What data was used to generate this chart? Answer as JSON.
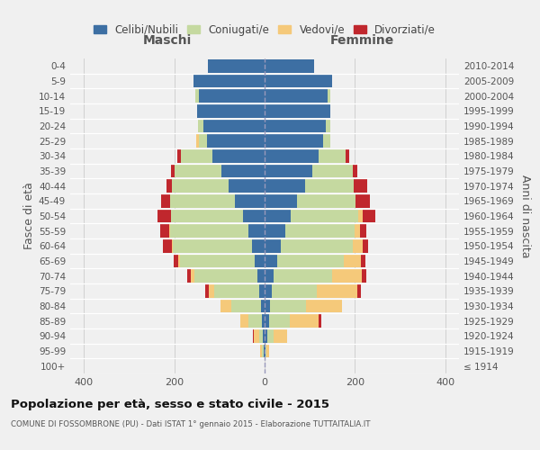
{
  "age_groups": [
    "100+",
    "95-99",
    "90-94",
    "85-89",
    "80-84",
    "75-79",
    "70-74",
    "65-69",
    "60-64",
    "55-59",
    "50-54",
    "45-49",
    "40-44",
    "35-39",
    "30-34",
    "25-29",
    "20-24",
    "15-19",
    "10-14",
    "5-9",
    "0-4"
  ],
  "birth_years": [
    "≤ 1914",
    "1915-1919",
    "1920-1924",
    "1925-1929",
    "1930-1934",
    "1935-1939",
    "1940-1944",
    "1945-1949",
    "1950-1954",
    "1955-1959",
    "1960-1964",
    "1965-1969",
    "1970-1974",
    "1975-1979",
    "1980-1984",
    "1985-1989",
    "1990-1994",
    "1995-1999",
    "2000-2004",
    "2005-2009",
    "2010-2014"
  ],
  "male_celibi": [
    0,
    2,
    3,
    5,
    8,
    12,
    16,
    22,
    28,
    35,
    48,
    65,
    80,
    95,
    115,
    128,
    135,
    150,
    145,
    158,
    125
  ],
  "male_coniugati": [
    0,
    4,
    8,
    30,
    65,
    100,
    140,
    165,
    175,
    175,
    160,
    145,
    125,
    105,
    70,
    18,
    12,
    0,
    8,
    0,
    0
  ],
  "male_vedovi": [
    0,
    3,
    12,
    18,
    25,
    12,
    8,
    5,
    3,
    2,
    0,
    0,
    0,
    0,
    0,
    5,
    0,
    0,
    0,
    0,
    0
  ],
  "male_divorziati": [
    0,
    0,
    3,
    0,
    0,
    8,
    8,
    10,
    18,
    18,
    28,
    18,
    12,
    8,
    8,
    0,
    0,
    0,
    0,
    0,
    0
  ],
  "female_celibi": [
    0,
    2,
    5,
    10,
    12,
    15,
    20,
    28,
    35,
    45,
    58,
    72,
    90,
    105,
    120,
    130,
    135,
    145,
    140,
    150,
    110
  ],
  "female_coniugati": [
    0,
    2,
    15,
    45,
    80,
    100,
    130,
    148,
    160,
    155,
    150,
    130,
    108,
    90,
    60,
    15,
    10,
    0,
    5,
    0,
    0
  ],
  "female_vedovi": [
    0,
    5,
    30,
    65,
    80,
    90,
    65,
    38,
    22,
    12,
    8,
    0,
    0,
    0,
    0,
    0,
    0,
    0,
    0,
    0,
    0
  ],
  "female_divorziati": [
    0,
    0,
    0,
    5,
    0,
    8,
    10,
    8,
    12,
    12,
    28,
    30,
    28,
    10,
    8,
    0,
    0,
    0,
    0,
    0,
    0
  ],
  "colors": {
    "celibi": "#3d6fa3",
    "coniugati": "#c5d9a0",
    "vedovi": "#f5c97a",
    "divorziati": "#c0272d"
  },
  "legend_labels": [
    "Celibi/Nubili",
    "Coniugati/e",
    "Vedovi/e",
    "Divorziati/e"
  ],
  "title": "Popolazione per età, sesso e stato civile - 2015",
  "subtitle": "COMUNE DI FOSSOMBRONE (PU) - Dati ISTAT 1° gennaio 2015 - Elaborazione TUTTAITALIA.IT",
  "ylabel_left": "Fasce di età",
  "ylabel_right": "Anni di nascita",
  "bg_color": "#f0f0f0",
  "grid_color": "#cccccc"
}
